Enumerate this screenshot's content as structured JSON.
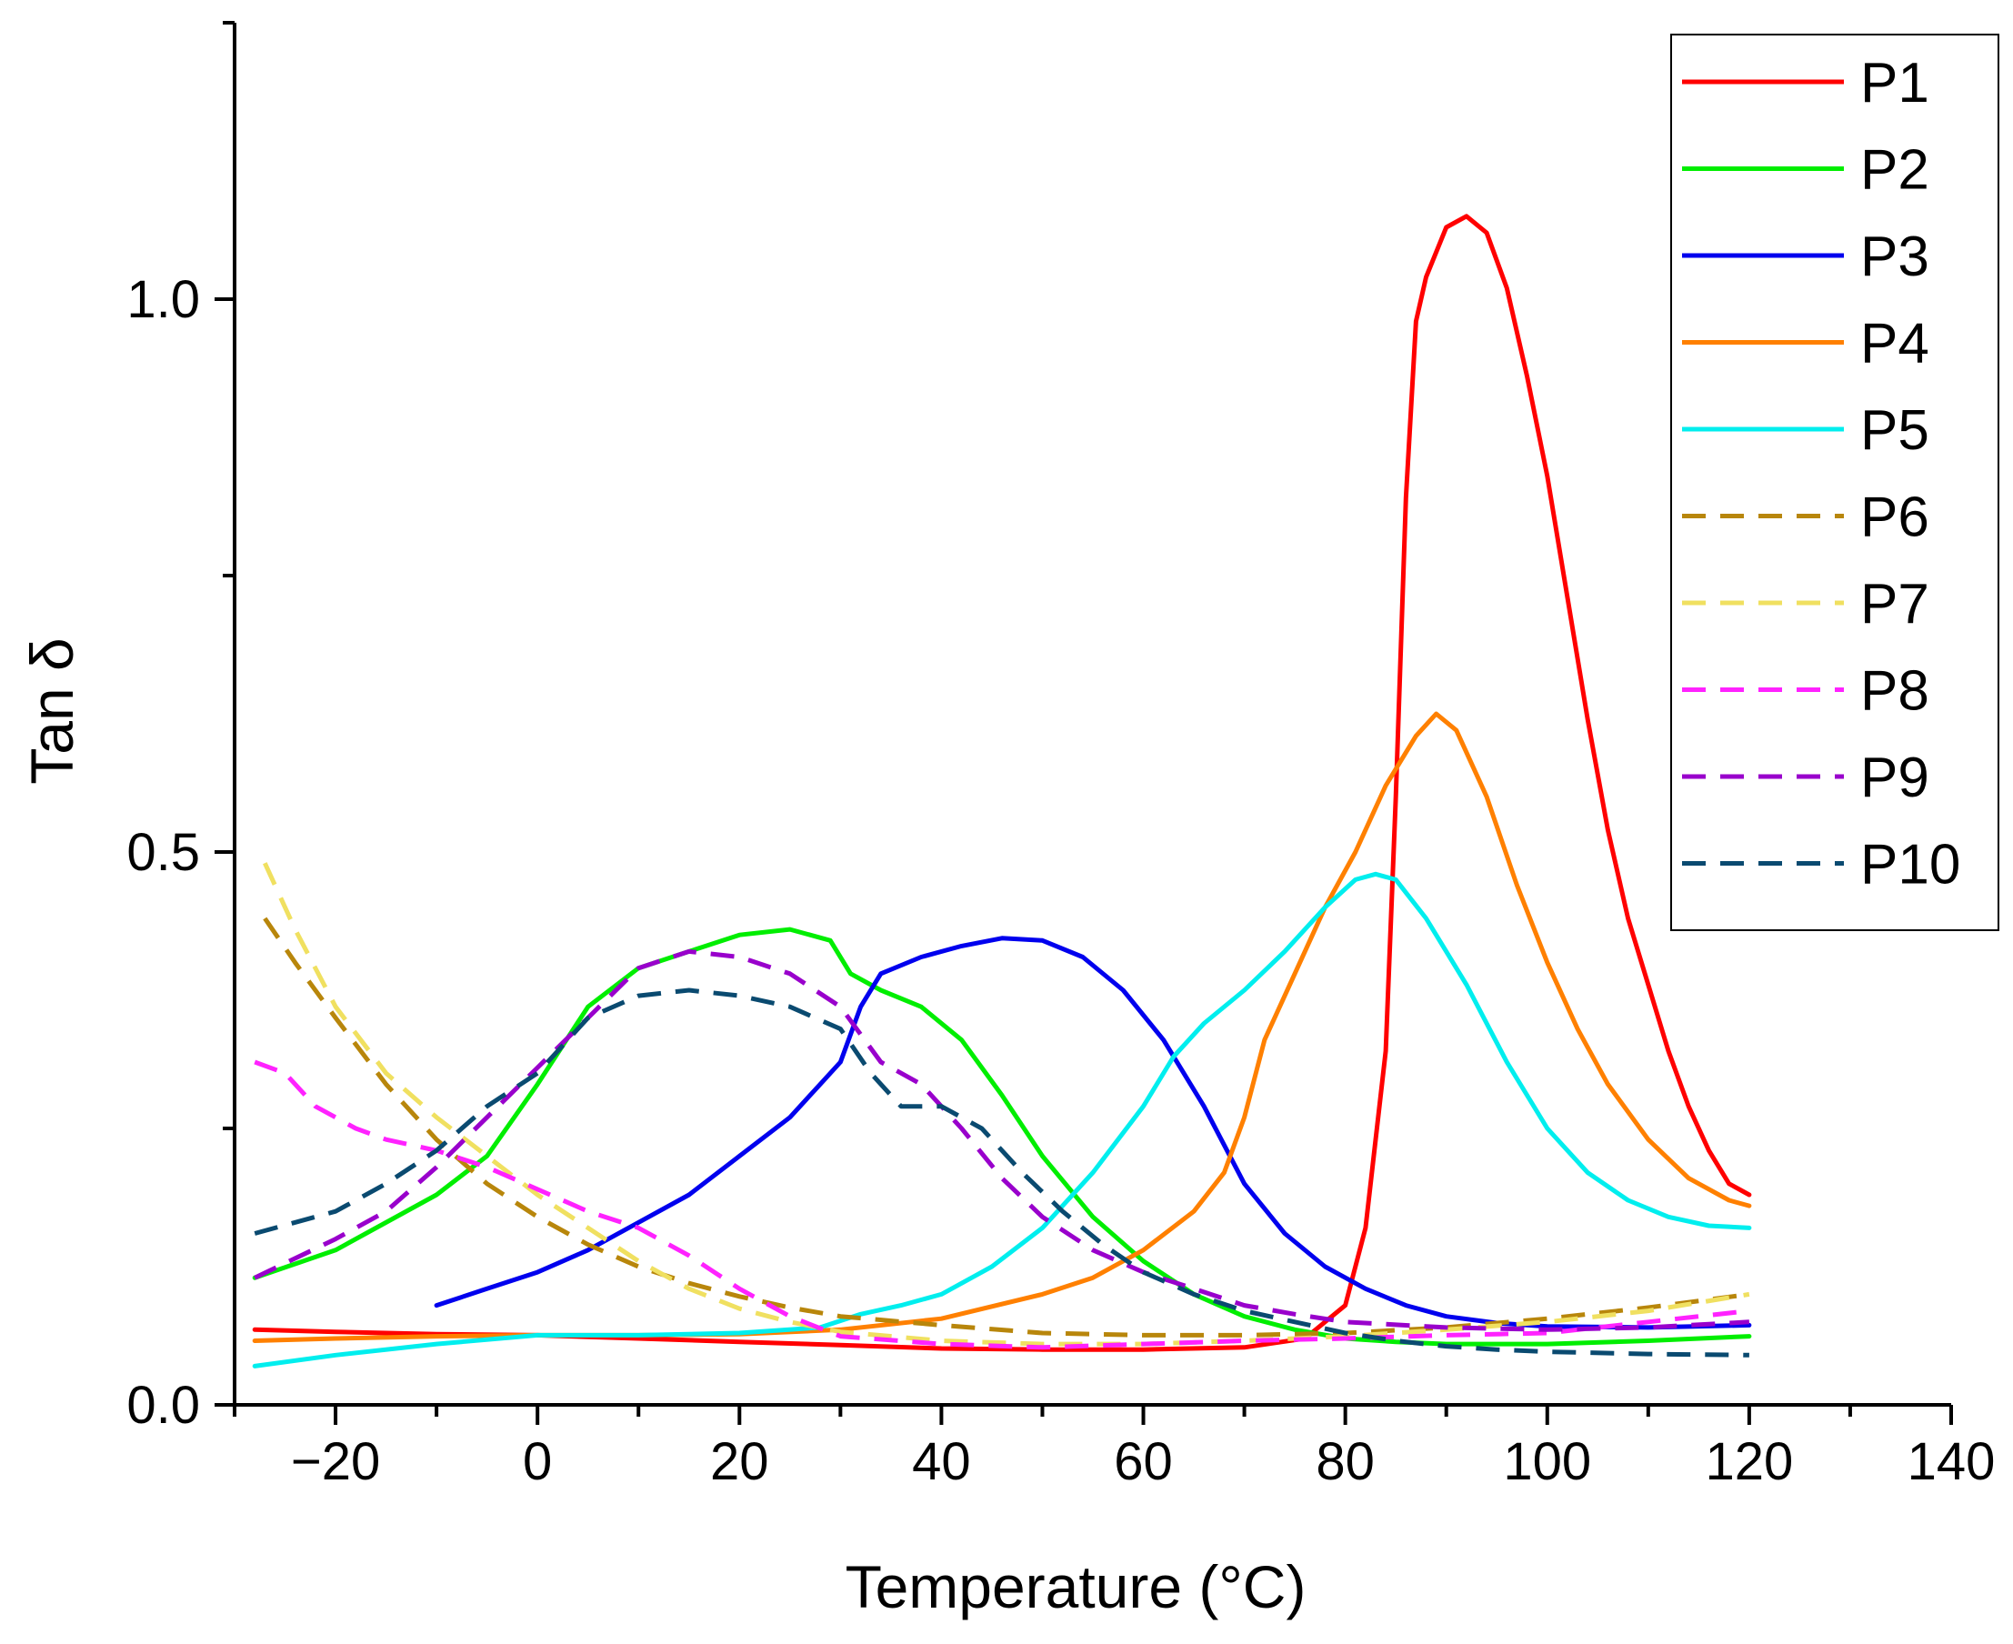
{
  "chart_data": {
    "type": "line",
    "title": "",
    "xlabel": "Temperature (°C)",
    "ylabel": "Tan δ",
    "xlim": [
      -30,
      140
    ],
    "ylim": [
      0.0,
      1.25
    ],
    "x_ticks": [
      -20,
      0,
      20,
      40,
      60,
      80,
      100,
      120,
      140
    ],
    "x_tick_labels": [
      "−20",
      "0",
      "20",
      "40",
      "60",
      "80",
      "100",
      "120",
      "140"
    ],
    "y_ticks": [
      0.0,
      0.5,
      1.0
    ],
    "y_tick_labels": [
      "0.0",
      "0.5",
      "1.0"
    ],
    "legend_position": "top-right",
    "series": [
      {
        "name": "P1",
        "color": "#ff0000",
        "style": "solid",
        "points": [
          [
            -28,
            0.068
          ],
          [
            -20,
            0.066
          ],
          [
            -10,
            0.064
          ],
          [
            0,
            0.063
          ],
          [
            10,
            0.06
          ],
          [
            20,
            0.057
          ],
          [
            30,
            0.054
          ],
          [
            40,
            0.051
          ],
          [
            50,
            0.05
          ],
          [
            60,
            0.05
          ],
          [
            70,
            0.052
          ],
          [
            76,
            0.06
          ],
          [
            80,
            0.09
          ],
          [
            82,
            0.16
          ],
          [
            84,
            0.32
          ],
          [
            85,
            0.55
          ],
          [
            86,
            0.82
          ],
          [
            87,
            0.98
          ],
          [
            88,
            1.02
          ],
          [
            90,
            1.065
          ],
          [
            92,
            1.075
          ],
          [
            94,
            1.06
          ],
          [
            96,
            1.01
          ],
          [
            98,
            0.93
          ],
          [
            100,
            0.84
          ],
          [
            102,
            0.73
          ],
          [
            104,
            0.62
          ],
          [
            106,
            0.52
          ],
          [
            108,
            0.44
          ],
          [
            110,
            0.38
          ],
          [
            112,
            0.32
          ],
          [
            114,
            0.27
          ],
          [
            116,
            0.23
          ],
          [
            118,
            0.2
          ],
          [
            120,
            0.19
          ]
        ]
      },
      {
        "name": "P2",
        "color": "#00ee00",
        "style": "solid",
        "points": [
          [
            -28,
            0.115
          ],
          [
            -20,
            0.14
          ],
          [
            -10,
            0.19
          ],
          [
            -5,
            0.225
          ],
          [
            0,
            0.29
          ],
          [
            5,
            0.36
          ],
          [
            10,
            0.395
          ],
          [
            15,
            0.41
          ],
          [
            20,
            0.425
          ],
          [
            25,
            0.43
          ],
          [
            29,
            0.42
          ],
          [
            31,
            0.39
          ],
          [
            34,
            0.375
          ],
          [
            38,
            0.36
          ],
          [
            42,
            0.33
          ],
          [
            46,
            0.28
          ],
          [
            50,
            0.225
          ],
          [
            55,
            0.17
          ],
          [
            60,
            0.13
          ],
          [
            65,
            0.1
          ],
          [
            70,
            0.08
          ],
          [
            75,
            0.068
          ],
          [
            80,
            0.06
          ],
          [
            85,
            0.057
          ],
          [
            90,
            0.055
          ],
          [
            100,
            0.055
          ],
          [
            110,
            0.058
          ],
          [
            120,
            0.062
          ]
        ]
      },
      {
        "name": "P3",
        "color": "#0000ee",
        "style": "solid",
        "points": [
          [
            -10,
            0.09
          ],
          [
            -5,
            0.105
          ],
          [
            0,
            0.12
          ],
          [
            5,
            0.14
          ],
          [
            10,
            0.165
          ],
          [
            15,
            0.19
          ],
          [
            20,
            0.225
          ],
          [
            25,
            0.26
          ],
          [
            28,
            0.29
          ],
          [
            30,
            0.31
          ],
          [
            32,
            0.36
          ],
          [
            34,
            0.39
          ],
          [
            38,
            0.405
          ],
          [
            42,
            0.415
          ],
          [
            46,
            0.422
          ],
          [
            50,
            0.42
          ],
          [
            54,
            0.405
          ],
          [
            58,
            0.375
          ],
          [
            62,
            0.33
          ],
          [
            66,
            0.27
          ],
          [
            70,
            0.2
          ],
          [
            74,
            0.155
          ],
          [
            78,
            0.125
          ],
          [
            82,
            0.105
          ],
          [
            86,
            0.09
          ],
          [
            90,
            0.08
          ],
          [
            95,
            0.074
          ],
          [
            100,
            0.071
          ],
          [
            110,
            0.07
          ],
          [
            120,
            0.072
          ]
        ]
      },
      {
        "name": "P4",
        "color": "#ff8000",
        "style": "solid",
        "points": [
          [
            -28,
            0.058
          ],
          [
            -20,
            0.06
          ],
          [
            -10,
            0.062
          ],
          [
            0,
            0.063
          ],
          [
            10,
            0.063
          ],
          [
            20,
            0.064
          ],
          [
            30,
            0.068
          ],
          [
            40,
            0.078
          ],
          [
            50,
            0.1
          ],
          [
            55,
            0.115
          ],
          [
            60,
            0.14
          ],
          [
            65,
            0.175
          ],
          [
            68,
            0.21
          ],
          [
            70,
            0.26
          ],
          [
            72,
            0.33
          ],
          [
            75,
            0.39
          ],
          [
            78,
            0.45
          ],
          [
            81,
            0.5
          ],
          [
            84,
            0.56
          ],
          [
            87,
            0.605
          ],
          [
            89,
            0.625
          ],
          [
            91,
            0.61
          ],
          [
            94,
            0.55
          ],
          [
            97,
            0.47
          ],
          [
            100,
            0.4
          ],
          [
            103,
            0.34
          ],
          [
            106,
            0.29
          ],
          [
            110,
            0.24
          ],
          [
            114,
            0.205
          ],
          [
            118,
            0.185
          ],
          [
            120,
            0.18
          ]
        ]
      },
      {
        "name": "P5",
        "color": "#00eeee",
        "style": "solid",
        "points": [
          [
            -28,
            0.035
          ],
          [
            -20,
            0.045
          ],
          [
            -10,
            0.055
          ],
          [
            0,
            0.063
          ],
          [
            10,
            0.063
          ],
          [
            20,
            0.065
          ],
          [
            28,
            0.07
          ],
          [
            32,
            0.082
          ],
          [
            36,
            0.09
          ],
          [
            40,
            0.1
          ],
          [
            45,
            0.125
          ],
          [
            50,
            0.16
          ],
          [
            55,
            0.21
          ],
          [
            60,
            0.27
          ],
          [
            63,
            0.315
          ],
          [
            66,
            0.345
          ],
          [
            70,
            0.375
          ],
          [
            74,
            0.41
          ],
          [
            78,
            0.45
          ],
          [
            81,
            0.475
          ],
          [
            83,
            0.48
          ],
          [
            85,
            0.475
          ],
          [
            88,
            0.44
          ],
          [
            92,
            0.38
          ],
          [
            96,
            0.31
          ],
          [
            100,
            0.25
          ],
          [
            104,
            0.21
          ],
          [
            108,
            0.185
          ],
          [
            112,
            0.17
          ],
          [
            116,
            0.162
          ],
          [
            120,
            0.16
          ]
        ]
      },
      {
        "name": "P6",
        "color": "#b8860b",
        "style": "dashed",
        "points": [
          [
            -27,
            0.44
          ],
          [
            -24,
            0.4
          ],
          [
            -20,
            0.35
          ],
          [
            -15,
            0.29
          ],
          [
            -10,
            0.24
          ],
          [
            -5,
            0.2
          ],
          [
            0,
            0.17
          ],
          [
            5,
            0.145
          ],
          [
            10,
            0.125
          ],
          [
            15,
            0.11
          ],
          [
            20,
            0.098
          ],
          [
            25,
            0.088
          ],
          [
            30,
            0.08
          ],
          [
            40,
            0.072
          ],
          [
            50,
            0.065
          ],
          [
            60,
            0.063
          ],
          [
            70,
            0.063
          ],
          [
            80,
            0.065
          ],
          [
            90,
            0.07
          ],
          [
            100,
            0.078
          ],
          [
            110,
            0.088
          ],
          [
            120,
            0.1
          ]
        ]
      },
      {
        "name": "P7",
        "color": "#f0e060",
        "style": "dashed",
        "points": [
          [
            -27,
            0.49
          ],
          [
            -24,
            0.43
          ],
          [
            -20,
            0.36
          ],
          [
            -15,
            0.3
          ],
          [
            -10,
            0.26
          ],
          [
            -5,
            0.225
          ],
          [
            0,
            0.19
          ],
          [
            5,
            0.16
          ],
          [
            10,
            0.13
          ],
          [
            15,
            0.105
          ],
          [
            20,
            0.087
          ],
          [
            25,
            0.075
          ],
          [
            30,
            0.066
          ],
          [
            40,
            0.058
          ],
          [
            50,
            0.055
          ],
          [
            60,
            0.055
          ],
          [
            70,
            0.058
          ],
          [
            80,
            0.062
          ],
          [
            90,
            0.068
          ],
          [
            100,
            0.075
          ],
          [
            110,
            0.085
          ],
          [
            120,
            0.1
          ]
        ]
      },
      {
        "name": "P8",
        "color": "#ff22ff",
        "style": "dashed",
        "points": [
          [
            -28,
            0.31
          ],
          [
            -25,
            0.3
          ],
          [
            -22,
            0.27
          ],
          [
            -18,
            0.25
          ],
          [
            -15,
            0.24
          ],
          [
            -10,
            0.23
          ],
          [
            -5,
            0.215
          ],
          [
            0,
            0.195
          ],
          [
            5,
            0.175
          ],
          [
            10,
            0.16
          ],
          [
            15,
            0.135
          ],
          [
            20,
            0.105
          ],
          [
            25,
            0.08
          ],
          [
            30,
            0.062
          ],
          [
            40,
            0.055
          ],
          [
            50,
            0.052
          ],
          [
            60,
            0.055
          ],
          [
            70,
            0.058
          ],
          [
            80,
            0.06
          ],
          [
            90,
            0.063
          ],
          [
            100,
            0.065
          ],
          [
            110,
            0.075
          ],
          [
            120,
            0.085
          ]
        ]
      },
      {
        "name": "P9",
        "color": "#9900cc",
        "style": "dashed",
        "points": [
          [
            -28,
            0.115
          ],
          [
            -20,
            0.15
          ],
          [
            -15,
            0.175
          ],
          [
            -10,
            0.215
          ],
          [
            -5,
            0.26
          ],
          [
            0,
            0.305
          ],
          [
            5,
            0.35
          ],
          [
            10,
            0.395
          ],
          [
            15,
            0.41
          ],
          [
            20,
            0.405
          ],
          [
            25,
            0.39
          ],
          [
            30,
            0.36
          ],
          [
            34,
            0.31
          ],
          [
            38,
            0.29
          ],
          [
            42,
            0.25
          ],
          [
            46,
            0.205
          ],
          [
            50,
            0.17
          ],
          [
            55,
            0.14
          ],
          [
            60,
            0.12
          ],
          [
            65,
            0.105
          ],
          [
            70,
            0.09
          ],
          [
            75,
            0.082
          ],
          [
            80,
            0.075
          ],
          [
            90,
            0.07
          ],
          [
            100,
            0.068
          ],
          [
            110,
            0.07
          ],
          [
            120,
            0.075
          ]
        ]
      },
      {
        "name": "P10",
        "color": "#0a4a70",
        "style": "dashed",
        "points": [
          [
            -28,
            0.155
          ],
          [
            -20,
            0.175
          ],
          [
            -15,
            0.2
          ],
          [
            -10,
            0.23
          ],
          [
            -5,
            0.27
          ],
          [
            0,
            0.3
          ],
          [
            5,
            0.35
          ],
          [
            10,
            0.37
          ],
          [
            15,
            0.375
          ],
          [
            20,
            0.37
          ],
          [
            25,
            0.36
          ],
          [
            30,
            0.34
          ],
          [
            33,
            0.3
          ],
          [
            36,
            0.27
          ],
          [
            40,
            0.27
          ],
          [
            44,
            0.25
          ],
          [
            48,
            0.21
          ],
          [
            52,
            0.175
          ],
          [
            56,
            0.145
          ],
          [
            60,
            0.12
          ],
          [
            65,
            0.1
          ],
          [
            70,
            0.085
          ],
          [
            75,
            0.075
          ],
          [
            80,
            0.065
          ],
          [
            85,
            0.058
          ],
          [
            90,
            0.053
          ],
          [
            95,
            0.05
          ],
          [
            100,
            0.048
          ],
          [
            110,
            0.046
          ],
          [
            120,
            0.045
          ]
        ]
      }
    ]
  }
}
